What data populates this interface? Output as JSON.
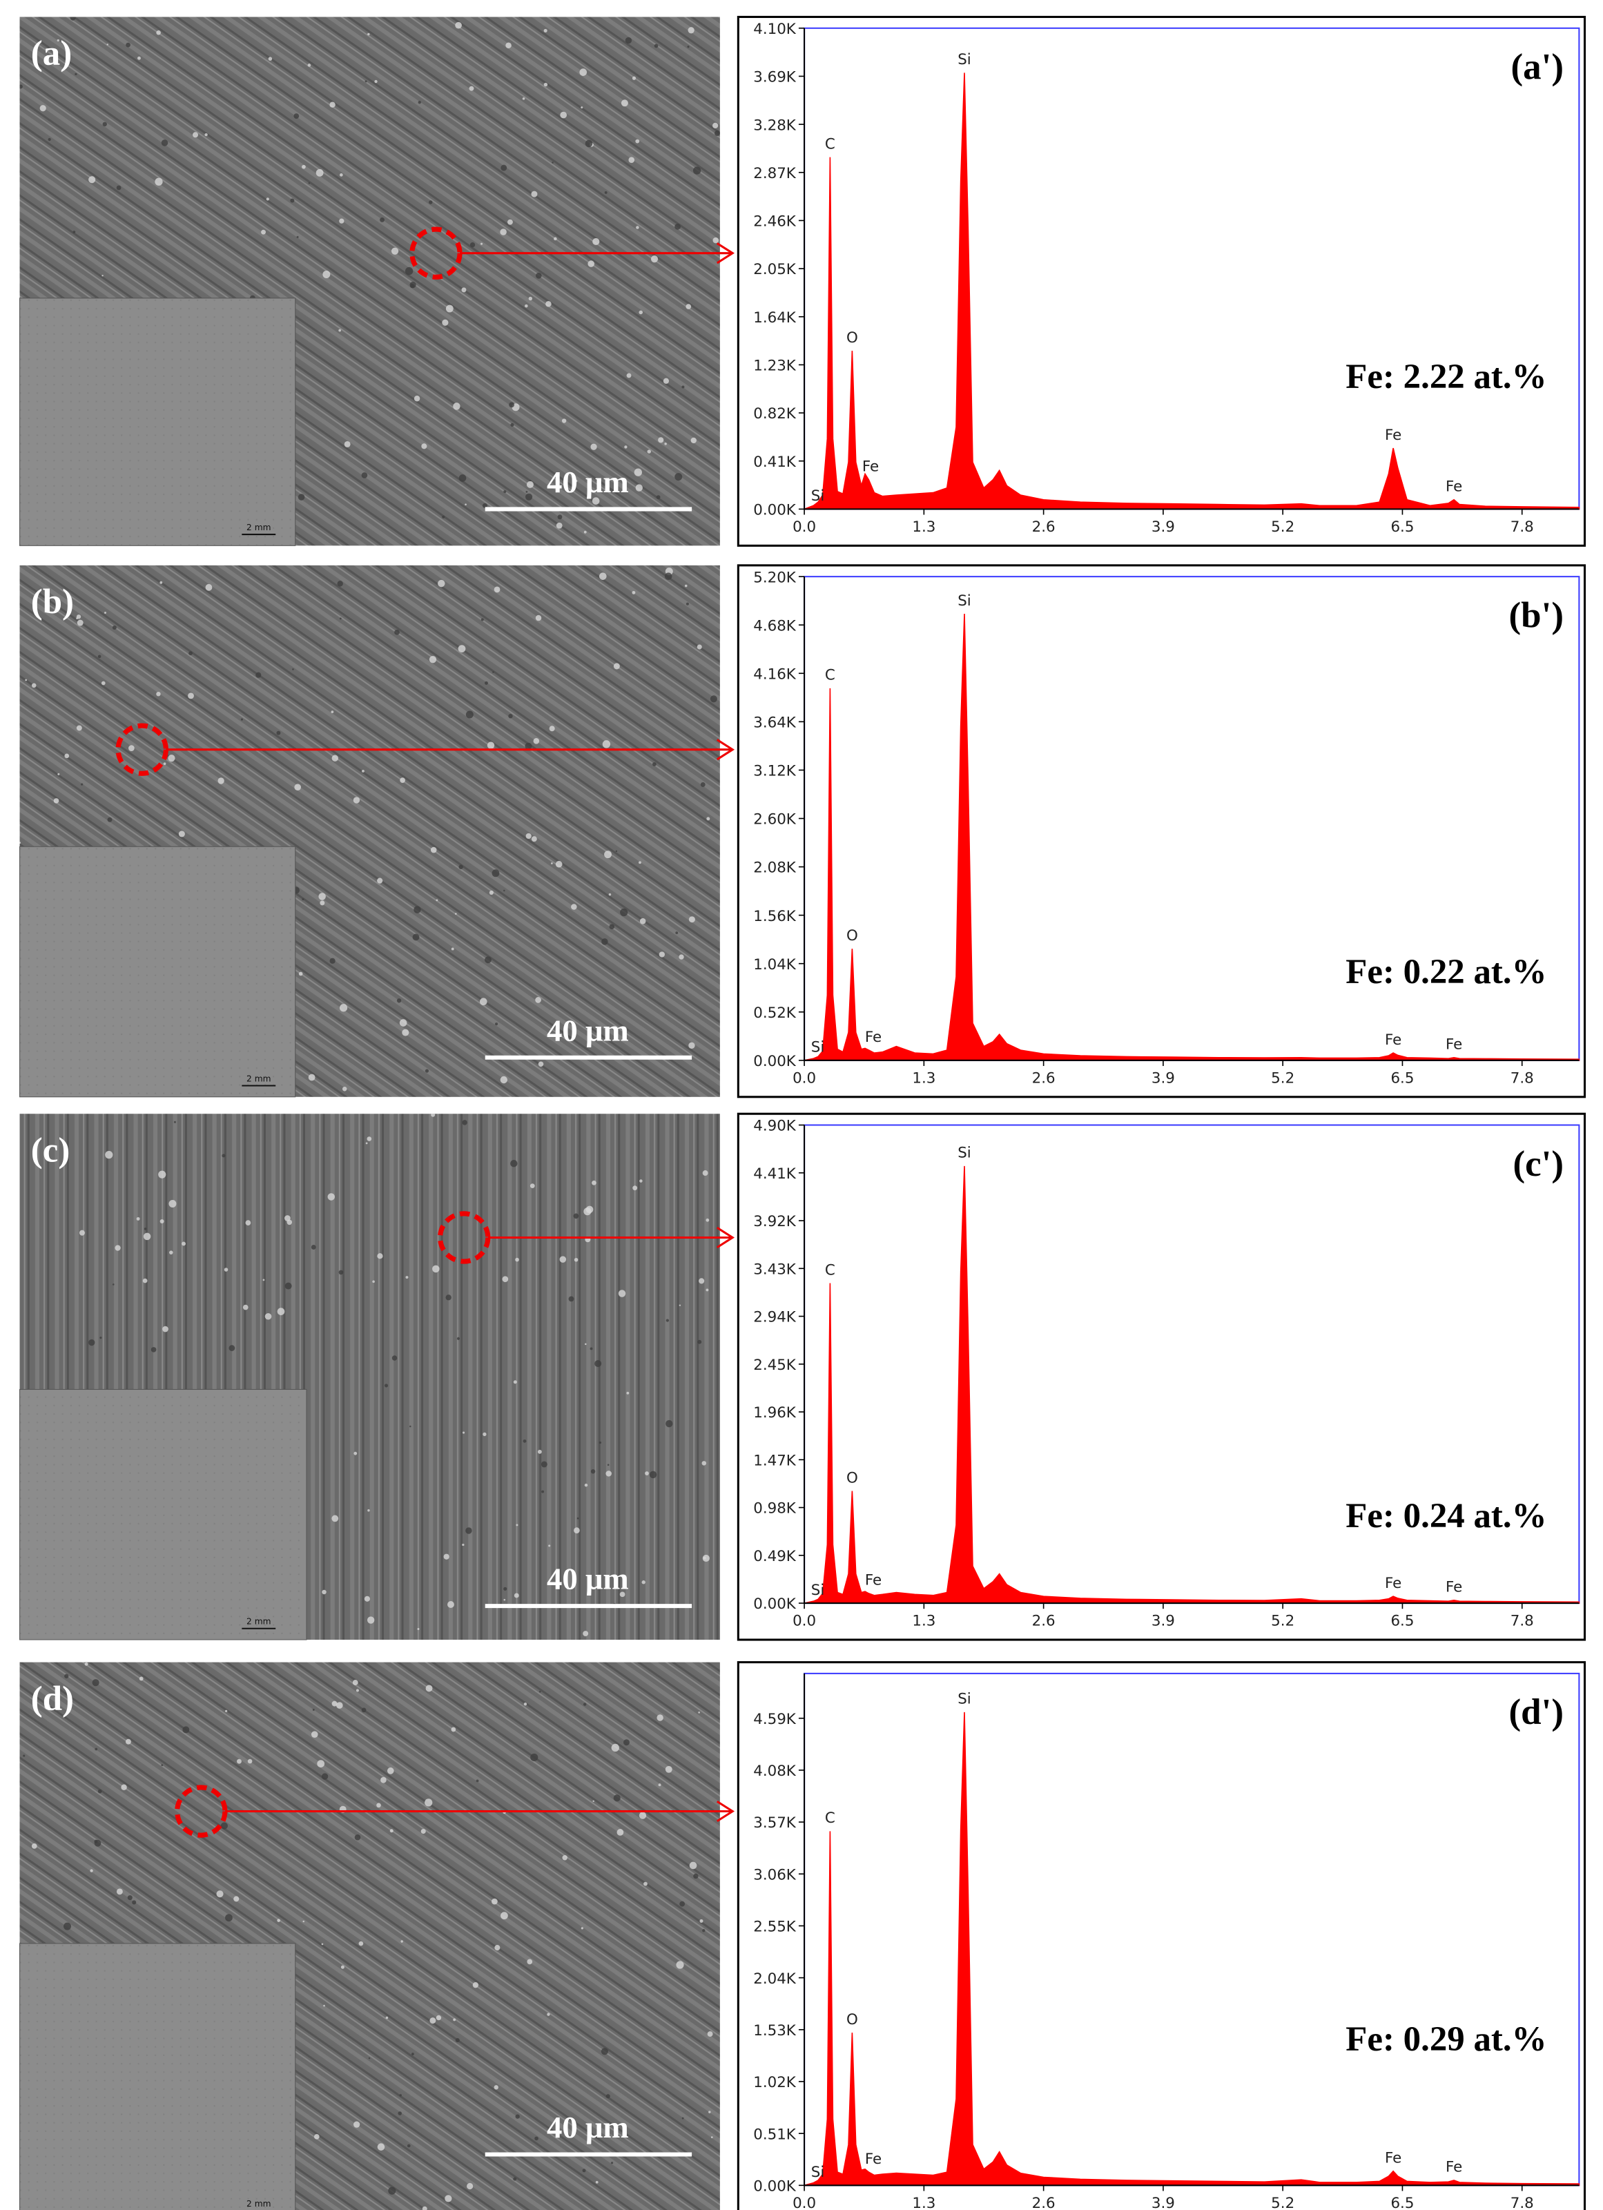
{
  "panels": [
    {
      "label": "(a)",
      "scale_bar": "40 μm",
      "inset_scale": "2 mm"
    },
    {
      "label": "(b)",
      "scale_bar": "40 μm",
      "inset_scale": "2 mm"
    },
    {
      "label": "(c)",
      "scale_bar": "40 μm",
      "inset_scale": "2 mm"
    },
    {
      "label": "(d)",
      "scale_bar": "40 μm",
      "inset_scale": "2 mm"
    }
  ],
  "chart_data": [
    {
      "type": "area",
      "label": "(a')",
      "note": "Fe: 2.22 at.%",
      "color": "#ff0000",
      "x": [
        0.0,
        0.1,
        0.15,
        0.2,
        0.25,
        0.28,
        0.31,
        0.36,
        0.42,
        0.48,
        0.52,
        0.56,
        0.62,
        0.66,
        0.7,
        0.76,
        0.85,
        1.0,
        1.2,
        1.4,
        1.55,
        1.65,
        1.7,
        1.74,
        1.78,
        1.83,
        1.95,
        2.05,
        2.12,
        2.2,
        2.35,
        2.6,
        3.0,
        3.5,
        4.0,
        4.5,
        5.0,
        5.4,
        5.6,
        6.0,
        6.25,
        6.35,
        6.4,
        6.45,
        6.55,
        6.8,
        7.0,
        7.06,
        7.12,
        7.4,
        7.8,
        8.42
      ],
      "values": [
        0,
        30,
        60,
        120,
        600,
        3000,
        600,
        150,
        130,
        400,
        1350,
        400,
        200,
        300,
        250,
        140,
        110,
        120,
        130,
        140,
        180,
        700,
        2800,
        3720,
        2400,
        400,
        180,
        250,
        330,
        200,
        120,
        80,
        60,
        50,
        45,
        40,
        35,
        45,
        30,
        30,
        60,
        300,
        520,
        350,
        80,
        30,
        50,
        80,
        40,
        25,
        20,
        15
      ],
      "xlim": [
        0,
        8.42
      ],
      "xticks": [
        {
          "value": 0,
          "label": "0.0"
        },
        1.3,
        2.6,
        3.9,
        5.2,
        6.5,
        7.8
      ],
      "ylim": [
        0,
        4100
      ],
      "yticks": [
        {
          "value": 0,
          "label": "0.00K"
        },
        {
          "value": 410,
          "label": "0.41K"
        },
        {
          "value": 820,
          "label": "0.82K"
        },
        {
          "value": 1230,
          "label": "1.23K"
        },
        {
          "value": 1640,
          "label": "1.64K"
        },
        {
          "value": 2050,
          "label": "2.05K"
        },
        {
          "value": 2460,
          "label": "2.46K"
        },
        {
          "value": 2870,
          "label": "2.87K"
        },
        {
          "value": 3280,
          "label": "3.28K"
        },
        {
          "value": 3690,
          "label": "3.69K"
        },
        {
          "value": 4100,
          "label": "4.10K"
        }
      ],
      "annotations": [
        {
          "text": "Si",
          "x": 1.74,
          "y": 3720
        },
        {
          "text": "C",
          "x": 0.28,
          "y": 3000
        },
        {
          "text": "O",
          "x": 0.52,
          "y": 1350
        },
        {
          "text": "Fe",
          "x": 0.72,
          "y": 250
        },
        {
          "text": "Si",
          "x": 0.1,
          "y": 0
        },
        {
          "text": "Fe",
          "x": 6.4,
          "y": 520
        },
        {
          "text": "Fe",
          "x": 7.06,
          "y": 80
        }
      ]
    },
    {
      "type": "area",
      "label": "(b')",
      "note": "Fe: 0.22 at.%",
      "color": "#ff0000",
      "x": [
        0.0,
        0.1,
        0.15,
        0.2,
        0.25,
        0.28,
        0.31,
        0.36,
        0.42,
        0.48,
        0.52,
        0.56,
        0.62,
        0.66,
        0.7,
        0.76,
        0.85,
        1.0,
        1.2,
        1.4,
        1.55,
        1.65,
        1.7,
        1.74,
        1.78,
        1.83,
        1.95,
        2.05,
        2.12,
        2.2,
        2.35,
        2.6,
        3.0,
        3.5,
        4.0,
        4.5,
        5.0,
        5.4,
        5.6,
        6.0,
        6.25,
        6.35,
        6.4,
        6.45,
        6.55,
        6.8,
        7.0,
        7.06,
        7.12,
        7.4,
        7.8,
        8.42
      ],
      "values": [
        0,
        20,
        40,
        100,
        700,
        4000,
        700,
        120,
        90,
        300,
        1200,
        300,
        120,
        130,
        110,
        80,
        90,
        150,
        80,
        70,
        110,
        900,
        3600,
        4800,
        3000,
        400,
        150,
        200,
        280,
        180,
        110,
        70,
        50,
        40,
        35,
        30,
        28,
        30,
        25,
        25,
        30,
        50,
        80,
        55,
        30,
        25,
        20,
        30,
        20,
        18,
        15,
        12
      ],
      "xlim": [
        0,
        8.42
      ],
      "xticks": [
        {
          "value": 0,
          "label": "0.0"
        },
        1.3,
        2.6,
        3.9,
        5.2,
        6.5,
        7.8
      ],
      "ylim": [
        0,
        5200
      ],
      "yticks": [
        {
          "value": 0,
          "label": "0.00K"
        },
        {
          "value": 520,
          "label": "0.52K"
        },
        {
          "value": 1040,
          "label": "1.04K"
        },
        {
          "value": 1560,
          "label": "1.56K"
        },
        {
          "value": 2080,
          "label": "2.08K"
        },
        {
          "value": 2600,
          "label": "2.60K"
        },
        {
          "value": 3120,
          "label": "3.12K"
        },
        {
          "value": 3640,
          "label": "3.64K"
        },
        {
          "value": 4160,
          "label": "4.16K"
        },
        {
          "value": 4680,
          "label": "4.68K"
        },
        {
          "value": 5200,
          "label": "5.20K"
        }
      ],
      "annotations": [
        {
          "text": "Si",
          "x": 1.74,
          "y": 4800
        },
        {
          "text": "C",
          "x": 0.28,
          "y": 4000
        },
        {
          "text": "O",
          "x": 0.52,
          "y": 1200
        },
        {
          "text": "Fe",
          "x": 0.75,
          "y": 110
        },
        {
          "text": "Si",
          "x": 0.1,
          "y": 0
        },
        {
          "text": "Fe",
          "x": 6.4,
          "y": 80
        },
        {
          "text": "Fe",
          "x": 7.06,
          "y": 30
        }
      ]
    },
    {
      "type": "area",
      "label": "(c')",
      "note": "Fe: 0.24 at.%",
      "color": "#ff0000",
      "x": [
        0.0,
        0.1,
        0.15,
        0.2,
        0.25,
        0.28,
        0.31,
        0.36,
        0.42,
        0.48,
        0.52,
        0.56,
        0.62,
        0.66,
        0.7,
        0.76,
        0.85,
        1.0,
        1.2,
        1.4,
        1.55,
        1.65,
        1.7,
        1.74,
        1.78,
        1.83,
        1.95,
        2.05,
        2.12,
        2.2,
        2.35,
        2.6,
        3.0,
        3.5,
        4.0,
        4.5,
        5.0,
        5.4,
        5.6,
        6.0,
        6.25,
        6.35,
        6.4,
        6.45,
        6.55,
        6.8,
        7.0,
        7.06,
        7.12,
        7.4,
        7.8,
        8.42
      ],
      "values": [
        0,
        20,
        40,
        100,
        600,
        3280,
        600,
        110,
        90,
        300,
        1150,
        300,
        110,
        120,
        100,
        80,
        90,
        110,
        90,
        80,
        110,
        800,
        3400,
        4480,
        2800,
        380,
        150,
        220,
        300,
        190,
        110,
        70,
        50,
        40,
        35,
        30,
        28,
        45,
        25,
        25,
        30,
        45,
        70,
        50,
        30,
        25,
        20,
        30,
        20,
        18,
        15,
        12
      ],
      "xlim": [
        0,
        8.42
      ],
      "xticks": [
        {
          "value": 0,
          "label": "0.0"
        },
        1.3,
        2.6,
        3.9,
        5.2,
        6.5,
        7.8
      ],
      "ylim": [
        0,
        4900
      ],
      "yticks": [
        {
          "value": 0,
          "label": "0.00K"
        },
        {
          "value": 490,
          "label": "0.49K"
        },
        {
          "value": 980,
          "label": "0.98K"
        },
        {
          "value": 1470,
          "label": "1.47K"
        },
        {
          "value": 1960,
          "label": "1.96K"
        },
        {
          "value": 2450,
          "label": "2.45K"
        },
        {
          "value": 2940,
          "label": "2.94K"
        },
        {
          "value": 3430,
          "label": "3.43K"
        },
        {
          "value": 3920,
          "label": "3.92K"
        },
        {
          "value": 4410,
          "label": "4.41K"
        },
        {
          "value": 4900,
          "label": "4.90K"
        }
      ],
      "annotations": [
        {
          "text": "Si",
          "x": 1.74,
          "y": 4480
        },
        {
          "text": "C",
          "x": 0.28,
          "y": 3280
        },
        {
          "text": "O",
          "x": 0.52,
          "y": 1150
        },
        {
          "text": "Fe",
          "x": 0.75,
          "y": 100
        },
        {
          "text": "Si",
          "x": 0.1,
          "y": 0
        },
        {
          "text": "Fe",
          "x": 6.4,
          "y": 70
        },
        {
          "text": "Fe",
          "x": 7.06,
          "y": 30
        }
      ]
    },
    {
      "type": "area",
      "label": "(d')",
      "note": "Fe: 0.29 at.%",
      "color": "#ff0000",
      "x": [
        0.0,
        0.1,
        0.15,
        0.2,
        0.25,
        0.28,
        0.31,
        0.36,
        0.42,
        0.48,
        0.52,
        0.56,
        0.62,
        0.66,
        0.7,
        0.76,
        0.85,
        1.0,
        1.2,
        1.4,
        1.55,
        1.65,
        1.7,
        1.74,
        1.78,
        1.83,
        1.95,
        2.05,
        2.12,
        2.2,
        2.35,
        2.6,
        3.0,
        3.5,
        4.0,
        4.5,
        5.0,
        5.4,
        5.6,
        6.0,
        6.25,
        6.35,
        6.4,
        6.45,
        6.55,
        6.8,
        7.0,
        7.06,
        7.12,
        7.4,
        7.8,
        8.42
      ],
      "values": [
        0,
        25,
        50,
        110,
        650,
        3480,
        650,
        130,
        110,
        400,
        1500,
        400,
        150,
        160,
        130,
        100,
        110,
        120,
        110,
        100,
        130,
        850,
        3500,
        4650,
        2900,
        400,
        160,
        230,
        330,
        200,
        120,
        80,
        60,
        50,
        45,
        40,
        35,
        55,
        30,
        30,
        40,
        90,
        140,
        90,
        40,
        30,
        35,
        50,
        30,
        22,
        18,
        15
      ],
      "xlim": [
        0,
        8.42
      ],
      "xticks": [
        {
          "value": 0,
          "label": "0.0"
        },
        1.3,
        2.6,
        3.9,
        5.2,
        6.5,
        7.8
      ],
      "ylim": [
        0,
        5030
      ],
      "yticks": [
        {
          "value": 0,
          "label": "0.00K"
        },
        {
          "value": 510,
          "label": "0.51K"
        },
        {
          "value": 1020,
          "label": "1.02K"
        },
        {
          "value": 1530,
          "label": "1.53K"
        },
        {
          "value": 2040,
          "label": "2.04K"
        },
        {
          "value": 2550,
          "label": "2.55K"
        },
        {
          "value": 3060,
          "label": "3.06K"
        },
        {
          "value": 3570,
          "label": "3.57K"
        },
        {
          "value": 4080,
          "label": "4.08K"
        },
        {
          "value": 4590,
          "label": "4.59K"
        }
      ],
      "annotations": [
        {
          "text": "Si",
          "x": 1.74,
          "y": 4650
        },
        {
          "text": "C",
          "x": 0.28,
          "y": 3480
        },
        {
          "text": "O",
          "x": 0.52,
          "y": 1500
        },
        {
          "text": "Fe",
          "x": 0.75,
          "y": 130
        },
        {
          "text": "Si",
          "x": 0.1,
          "y": 0
        },
        {
          "text": "Fe",
          "x": 6.4,
          "y": 140
        },
        {
          "text": "Fe",
          "x": 7.06,
          "y": 50
        }
      ]
    }
  ]
}
